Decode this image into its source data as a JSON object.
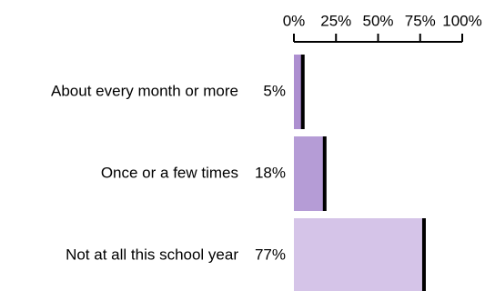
{
  "chart_data": {
    "type": "bar",
    "orientation": "horizontal",
    "title": "",
    "xlabel": "",
    "ylabel": "",
    "xlim": [
      0,
      100
    ],
    "axis_position": "top",
    "ticks": [
      {
        "value": 0,
        "label": "0%"
      },
      {
        "value": 25,
        "label": "25%"
      },
      {
        "value": 50,
        "label": "50%"
      },
      {
        "value": 75,
        "label": "75%"
      },
      {
        "value": 100,
        "label": "100%"
      }
    ],
    "categories": [
      "About every month or more",
      "Once or a few times",
      "Not at all this school year"
    ],
    "values": [
      5,
      18,
      77
    ],
    "value_labels": [
      "5%",
      "18%",
      "77%"
    ],
    "colors": [
      "#ad8fd0",
      "#b59cd6",
      "#d5c4e8"
    ],
    "bar_end_color": "#000000",
    "grid": false,
    "legend": "none"
  }
}
